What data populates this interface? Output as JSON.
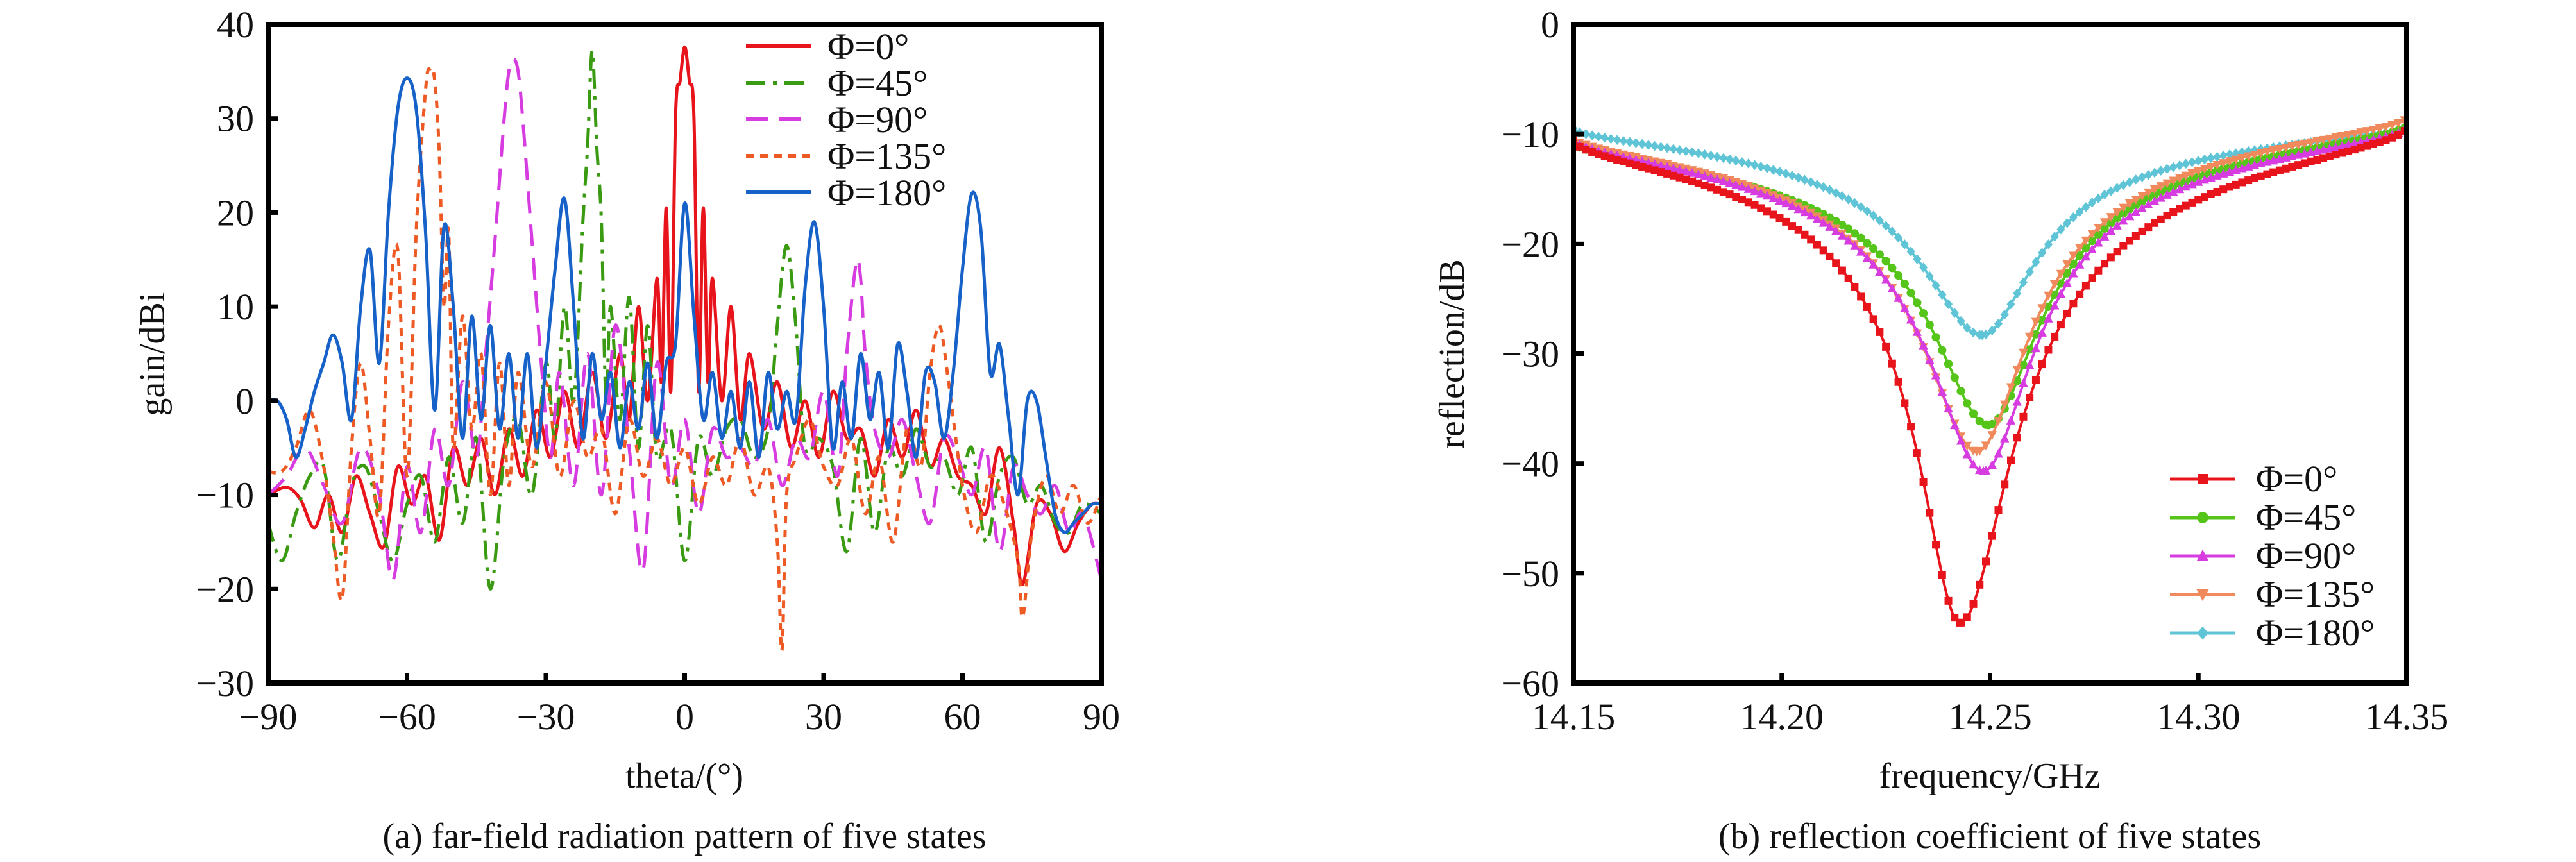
{
  "chart_data": [
    {
      "type": "line",
      "title": "",
      "caption": "(a) far-field radiation pattern of five states",
      "xlabel": "theta/(°)",
      "ylabel": "gain/dBi",
      "xlim": [
        -90,
        90
      ],
      "ylim": [
        -30,
        40
      ],
      "xticks": [
        -90,
        -60,
        -30,
        0,
        30,
        60,
        90
      ],
      "xtick_labels": [
        "−90",
        "−60",
        "−30",
        "0",
        "30",
        "60",
        "90"
      ],
      "yticks": [
        -30,
        -20,
        -10,
        0,
        10,
        20,
        30,
        40
      ],
      "ytick_labels": [
        "−30",
        "−20",
        "−10",
        "0",
        "10",
        "20",
        "30",
        "40"
      ],
      "grid": false,
      "legend_position": "top-right",
      "series": [
        {
          "name": "Φ=0°",
          "color": "#e8141b",
          "dash": "solid",
          "x": [
            -90,
            -86,
            -83,
            -80,
            -77,
            -74,
            -71,
            -68,
            -65,
            -62,
            -59,
            -56,
            -53,
            -50,
            -47,
            -44,
            -41,
            -38,
            -35,
            -32,
            -29,
            -26,
            -23,
            -20,
            -17,
            -14,
            -12,
            -10,
            -8,
            -6,
            -5,
            -4,
            -3,
            -2,
            -1,
            0,
            1,
            2,
            3,
            4,
            5,
            6,
            8,
            10,
            12,
            14,
            17,
            20,
            23,
            26,
            29,
            32,
            35,
            38,
            41,
            44,
            47,
            50,
            53,
            56,
            59,
            62,
            65,
            68,
            71,
            73,
            76,
            79,
            82,
            85,
            88,
            90
          ],
          "y": [
            -10,
            -9.2,
            -10.5,
            -13.5,
            -10,
            -14,
            -8,
            -12,
            -15.5,
            -7,
            -11,
            -8,
            -14.8,
            -5,
            -9,
            -4,
            -10,
            -3,
            -8,
            -1,
            -6,
            1,
            -5,
            3,
            -4,
            5,
            -2,
            10,
            0,
            13,
            2,
            20.5,
            1,
            30,
            34,
            37.6,
            34,
            30,
            1,
            20.5,
            2,
            13,
            0,
            10,
            -2,
            5,
            -3,
            2,
            -5,
            0,
            -6,
            1,
            -4,
            -3,
            -8,
            -2,
            -6,
            -1,
            -7,
            -4,
            -8,
            -9,
            -12,
            -5,
            -13,
            -19.5,
            -11,
            -12,
            -16,
            -13,
            -11,
            -11
          ]
        },
        {
          "name": "Φ=45°",
          "color": "#3a9a12",
          "dash": "dashdot",
          "x": [
            -90,
            -87,
            -84,
            -81,
            -78,
            -75,
            -72,
            -69,
            -66,
            -63,
            -60,
            -57,
            -54,
            -51,
            -48,
            -45,
            -42,
            -39,
            -36,
            -33,
            -30,
            -28,
            -26,
            -24,
            -22,
            -21,
            -20,
            -19,
            -18,
            -17,
            -16,
            -14,
            -12,
            -10,
            -8,
            -6,
            -3,
            0,
            3,
            6,
            9,
            12,
            15,
            18,
            20,
            22,
            24,
            26,
            29,
            32,
            35,
            38,
            41,
            44,
            47,
            50,
            53,
            56,
            59,
            62,
            65,
            68,
            71,
            74,
            77,
            80,
            83,
            86,
            90
          ],
          "y": [
            -13,
            -17,
            -12,
            -8,
            -7,
            -17,
            -9,
            -7,
            -12,
            -17,
            -11,
            -8,
            -15,
            -6,
            -13,
            -4,
            -20,
            -6,
            -2,
            -10,
            4,
            -4,
            10,
            0,
            19,
            27,
            37.2,
            27,
            19,
            0,
            10,
            -2,
            11,
            -5,
            8,
            -6,
            -3,
            -17,
            -4,
            -8,
            -3,
            -2,
            -6,
            -3,
            8,
            16.5,
            8,
            -5,
            -4,
            -7,
            -16,
            -4,
            -14,
            -5,
            -8,
            -3,
            -7,
            -6,
            -10,
            -5,
            -15,
            -8,
            -6,
            -11,
            -9,
            -13,
            -14,
            -11,
            -12
          ]
        },
        {
          "name": "Φ=90°",
          "color": "#d63ce0",
          "dash": "dash",
          "x": [
            -90,
            -86,
            -82,
            -78,
            -74,
            -70,
            -66,
            -63,
            -60,
            -57,
            -54,
            -51,
            -48,
            -45,
            -43,
            -41,
            -39,
            -38,
            -37,
            -36,
            -35,
            -33,
            -31,
            -29,
            -27,
            -24,
            -21,
            -18,
            -15,
            -12,
            -9,
            -6,
            -3,
            0,
            3,
            6,
            9,
            12,
            15,
            18,
            21,
            24,
            27,
            30,
            33,
            35,
            37,
            38,
            39,
            41,
            44,
            47,
            50,
            53,
            56,
            59,
            62,
            65,
            68,
            71,
            74,
            77,
            80,
            83,
            86,
            90
          ],
          "y": [
            -10,
            -8,
            -5,
            -9,
            -13,
            -5,
            -10,
            -19,
            -7,
            -14,
            -3,
            -9,
            2,
            -6,
            5,
            17,
            30,
            35,
            36.3,
            35,
            30,
            17,
            4,
            -6,
            3,
            -9,
            5,
            -10,
            8,
            -5,
            -18,
            4,
            -9,
            -2,
            -12,
            -3,
            -6,
            -5,
            -7,
            -2,
            -9,
            -4,
            -6,
            1,
            -8,
            5,
            14.5,
            13,
            5,
            -3,
            -6,
            -2,
            -8,
            -13,
            -4,
            -6,
            -10,
            -5,
            -16,
            -7,
            -10,
            -12,
            -9,
            -14,
            -12,
            -19
          ]
        },
        {
          "name": "Φ=135°",
          "color": "#ee5a24",
          "dash": "dot",
          "x": [
            -90,
            -87,
            -84,
            -81,
            -78,
            -76,
            -74,
            -72,
            -70,
            -68,
            -66,
            -64,
            -62,
            -60,
            -58,
            -56,
            -55,
            -54,
            -53,
            -52,
            -51,
            -50,
            -48,
            -46,
            -44,
            -42,
            -40,
            -38,
            -36,
            -33,
            -30,
            -27,
            -24,
            -21,
            -18,
            -15,
            -12,
            -9,
            -6,
            -3,
            0,
            3,
            6,
            9,
            12,
            15,
            18,
            20,
            21,
            22,
            24,
            27,
            30,
            33,
            36,
            39,
            42,
            45,
            48,
            51,
            53,
            55,
            57,
            60,
            63,
            66,
            69,
            72,
            73,
            75,
            78,
            81,
            84,
            87,
            90
          ],
          "y": [
            -7.5,
            -7.5,
            -5,
            -1,
            -7,
            -14,
            -21,
            -5,
            4,
            -4,
            -12,
            8,
            16,
            -8,
            18,
            33,
            35.3,
            34,
            26,
            10,
            18,
            -5,
            9,
            -3,
            5,
            -10,
            4,
            -9,
            3,
            -7,
            2,
            -8,
            0,
            -6,
            -3,
            -12,
            -2,
            -8,
            -4,
            -9,
            -5,
            -11,
            -6,
            -9,
            -4,
            -10,
            -7,
            -15,
            -26.5,
            -10,
            -6,
            -2,
            -7,
            -9,
            -4,
            -12,
            -6,
            -15,
            -3,
            -7,
            3,
            8,
            2,
            -9,
            -14,
            -8,
            -11,
            -17,
            -23,
            -14,
            -8,
            -12,
            -9,
            -13,
            -10
          ]
        },
        {
          "name": "Φ=180°",
          "color": "#1762c8",
          "dash": "solid",
          "x": [
            -90,
            -88,
            -86,
            -84,
            -82,
            -80,
            -78,
            -76,
            -74,
            -72,
            -70,
            -68,
            -66,
            -64,
            -62,
            -60,
            -58,
            -56,
            -54,
            -52,
            -50,
            -48,
            -46,
            -44,
            -42,
            -40,
            -38,
            -36,
            -34,
            -32,
            -30,
            -28,
            -26,
            -24,
            -22,
            -20,
            -18,
            -16,
            -14,
            -12,
            -10,
            -8,
            -6,
            -4,
            -2,
            0,
            2,
            4,
            6,
            8,
            10,
            12,
            14,
            16,
            18,
            20,
            22,
            24,
            26,
            28,
            30,
            32,
            34,
            36,
            38,
            40,
            42,
            44,
            46,
            48,
            50,
            52,
            54,
            56,
            58,
            60,
            62,
            64,
            66,
            68,
            70,
            72,
            74,
            76,
            78,
            80,
            82,
            84,
            86,
            88,
            90
          ],
          "y": [
            0,
            0,
            -2,
            -6,
            -3,
            1,
            4,
            7,
            4,
            -2,
            10,
            16,
            4,
            20,
            31,
            34.3,
            31,
            18,
            -1,
            18.5,
            10,
            -4,
            9,
            -2,
            8,
            -3,
            5,
            -4,
            5,
            -5,
            4,
            14,
            21.5,
            10,
            -4,
            5,
            -2,
            3,
            -5,
            2,
            -3,
            4,
            -4,
            4,
            6,
            21,
            9,
            -2,
            3,
            -4,
            1,
            -5,
            2,
            -6,
            3,
            -3,
            1,
            -2,
            12,
            19,
            10,
            -5,
            2,
            -4,
            5,
            -2,
            3,
            -5,
            6,
            1,
            -6,
            3,
            2,
            -4,
            3,
            14,
            22,
            18,
            3,
            6,
            -2,
            -10,
            0,
            0,
            -6,
            -12,
            -14,
            -13,
            -12,
            -11,
            -11
          ]
        }
      ],
      "legend": [
        "Φ=0°",
        "Φ=45°",
        "Φ=90°",
        "Φ=135°",
        "Φ=180°"
      ]
    },
    {
      "type": "line",
      "title": "",
      "caption": "(b) reflection coefficient of five states",
      "xlabel": "frequency/GHz",
      "ylabel": "reflection/dB",
      "xlim": [
        14.15,
        14.35
      ],
      "ylim": [
        -60,
        0
      ],
      "xticks": [
        14.15,
        14.2,
        14.25,
        14.3,
        14.35
      ],
      "xtick_labels": [
        "14.15",
        "14.20",
        "14.25",
        "14.30",
        "14.35"
      ],
      "yticks": [
        -60,
        -50,
        -40,
        -30,
        -20,
        -10,
        0
      ],
      "ytick_labels": [
        "−60",
        "−50",
        "−40",
        "−30",
        "−20",
        "−10",
        "0"
      ],
      "grid": false,
      "legend_position": "bottom-right",
      "series": [
        {
          "name": "Φ=0°",
          "color": "#e8141b",
          "marker": "square",
          "f0": 14.2428,
          "min_db": -54.5,
          "start_db": -10.6,
          "end_db": -9.4,
          "q_left": 0.0095,
          "q_right": 0.012
        },
        {
          "name": "Φ=45°",
          "color": "#55c51a",
          "marker": "circle",
          "f0": 14.2496,
          "min_db": -36.5,
          "start_db": -10.8,
          "end_db": -9.2,
          "q_left": 0.013,
          "q_right": 0.012
        },
        {
          "name": "Φ=90°",
          "color": "#d63ce0",
          "marker": "triangle-up",
          "f0": 14.2484,
          "min_db": -40.7,
          "start_db": -10.5,
          "end_db": -9.4,
          "q_left": 0.0125,
          "q_right": 0.0115
        },
        {
          "name": "Φ=135°",
          "color": "#f08a5d",
          "marker": "triangle-down",
          "f0": 14.2468,
          "min_db": -38.9,
          "start_db": -10.3,
          "end_db": -8.5,
          "q_left": 0.0125,
          "q_right": 0.012
        },
        {
          "name": "Φ=180°",
          "color": "#5fc5d6",
          "marker": "diamond",
          "f0": 14.2481,
          "min_db": -28.3,
          "start_db": -9.5,
          "end_db": -9.3,
          "q_left": 0.014,
          "q_right": 0.012
        }
      ],
      "legend": [
        "Φ=0°",
        "Φ=45°",
        "Φ=90°",
        "Φ=135°",
        "Φ=180°"
      ]
    }
  ]
}
